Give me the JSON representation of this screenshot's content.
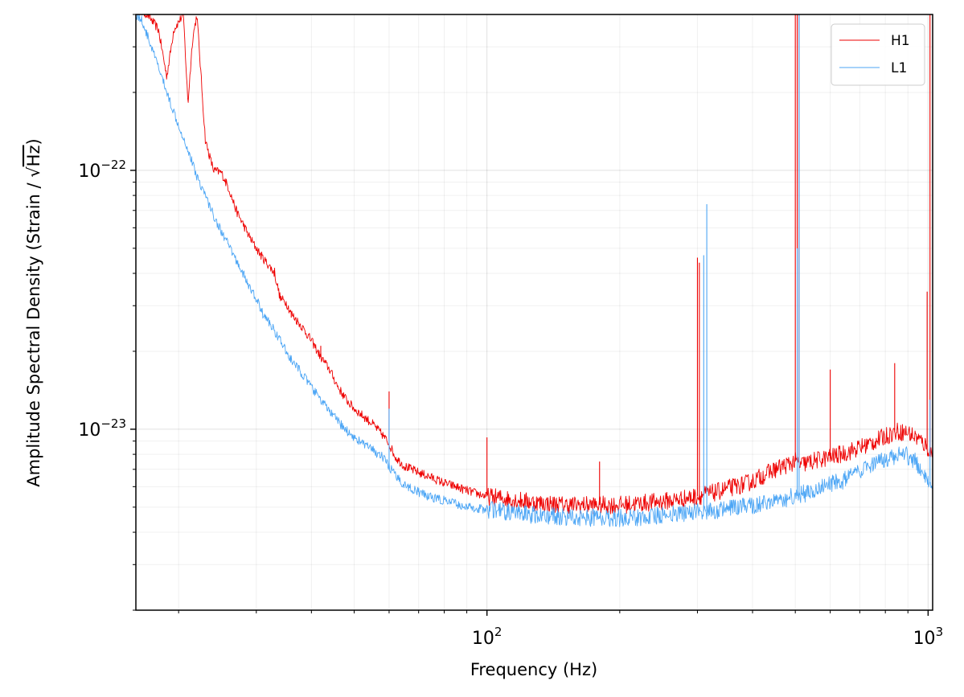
{
  "chart_data": {
    "type": "line",
    "title": "",
    "xlabel": "Frequency (Hz)",
    "ylabel_prefix": "Amplitude Spectral Density (Strain / ",
    "ylabel_sqrt": "√",
    "ylabel_radicand": "Hz",
    "ylabel_suffix": ")",
    "xscale": "log",
    "yscale": "log",
    "xlim": [
      16,
      1024
    ],
    "ylim": [
      2e-24,
      4e-22
    ],
    "grid": true,
    "legend_position": "top-right",
    "x_major_ticks": [
      {
        "value": 100,
        "base": "10",
        "exp": "2"
      },
      {
        "value": 1000,
        "base": "10",
        "exp": "3"
      }
    ],
    "y_major_ticks": [
      {
        "value": 1e-22,
        "base": "10",
        "exp": "−22"
      },
      {
        "value": 1e-23,
        "base": "10",
        "exp": "−23"
      }
    ],
    "series": [
      {
        "name": "H1",
        "color": "#ee0000",
        "x": [
          16,
          17,
          18,
          18.8,
          19.5,
          20.5,
          21,
          21.5,
          22,
          23,
          24,
          25,
          26,
          27,
          28,
          29,
          30,
          31,
          32,
          33,
          34,
          35,
          36,
          38,
          40,
          42,
          44,
          46,
          48,
          50,
          55,
          58,
          60,
          62,
          65,
          70,
          75,
          80,
          85,
          90,
          100,
          110,
          120,
          130,
          150,
          180,
          200,
          230,
          260,
          280,
          300,
          303,
          310,
          330,
          350,
          380,
          400,
          420,
          450,
          480,
          500,
          505,
          510,
          515,
          530,
          560,
          600,
          650,
          700,
          750,
          800,
          850,
          900,
          950,
          990,
          1000,
          1010,
          1024
        ],
        "y": [
          4.2e-22,
          4e-22,
          3.5e-22,
          2.3e-22,
          3.5e-22,
          4e-22,
          1.8e-22,
          3.2e-22,
          4e-22,
          1.3e-22,
          1e-22,
          9.8e-23,
          8.5e-23,
          7e-23,
          6.2e-23,
          5.5e-23,
          5e-23,
          4.6e-23,
          4.3e-23,
          4e-23,
          3.2e-23,
          3.1e-23,
          2.8e-23,
          2.5e-23,
          2.2e-23,
          1.9e-23,
          1.7e-23,
          1.45e-23,
          1.3e-23,
          1.2e-23,
          1.05e-23,
          9.5e-24,
          8.8e-24,
          7.8e-24,
          7.2e-24,
          6.8e-24,
          6.5e-24,
          6.2e-24,
          6e-24,
          5.8e-24,
          5.5e-24,
          5.4e-24,
          5.3e-24,
          5.2e-24,
          5.1e-24,
          5.1e-24,
          5.1e-24,
          5.2e-24,
          5.3e-24,
          5.4e-24,
          5.5e-24,
          5.5e-24,
          5.6e-24,
          5.7e-24,
          5.9e-24,
          6.1e-24,
          6.3e-24,
          6.6e-24,
          7e-24,
          7.3e-24,
          7.5e-24,
          7.5e-24,
          7.3e-24,
          7.3e-24,
          7.4e-24,
          7.6e-24,
          7.8e-24,
          8.1e-24,
          8.5e-24,
          8.9e-24,
          9.4e-24,
          9.8e-24,
          9.7e-24,
          9.2e-24,
          8.6e-24,
          8.4e-24,
          8.2e-24,
          8e-24
        ],
        "peaks": [
          {
            "x": 60,
            "y": 1.4e-23
          },
          {
            "x": 33,
            "y": 4.2e-23
          },
          {
            "x": 36,
            "y": 2.7e-23
          },
          {
            "x": 42,
            "y": 2.1e-23
          },
          {
            "x": 100,
            "y": 9.3e-24
          },
          {
            "x": 180,
            "y": 7.5e-24
          },
          {
            "x": 300,
            "y": 4.6e-23
          },
          {
            "x": 303,
            "y": 4.4e-23
          },
          {
            "x": 500,
            "y": 4e-22
          },
          {
            "x": 505,
            "y": 4e-22
          },
          {
            "x": 510,
            "y": 4e-22
          },
          {
            "x": 600,
            "y": 1.7e-23
          },
          {
            "x": 840,
            "y": 1.8e-23
          },
          {
            "x": 995,
            "y": 3.4e-23
          },
          {
            "x": 1010,
            "y": 4e-22
          }
        ]
      },
      {
        "name": "L1",
        "color": "#4da6f5",
        "x": [
          16,
          16.5,
          17,
          18,
          19,
          20,
          21,
          22,
          23,
          24,
          25,
          26,
          27,
          28,
          29,
          30,
          31,
          32,
          33,
          34,
          35,
          36,
          38,
          40,
          42,
          44,
          46,
          48,
          50,
          55,
          58,
          60,
          62,
          65,
          70,
          75,
          80,
          85,
          90,
          100,
          110,
          120,
          130,
          150,
          180,
          200,
          230,
          260,
          280,
          300,
          330,
          350,
          380,
          400,
          450,
          500,
          550,
          600,
          650,
          700,
          750,
          800,
          850,
          900,
          950,
          1000,
          1024
        ],
        "y": [
          4e-22,
          3.8e-22,
          3.3e-22,
          2.5e-22,
          1.9e-22,
          1.5e-22,
          1.2e-22,
          9.5e-23,
          8e-23,
          6.7e-23,
          5.8e-23,
          5.1e-23,
          4.5e-23,
          4e-23,
          3.5e-23,
          3.2e-23,
          2.8e-23,
          2.6e-23,
          2.4e-23,
          2.2e-23,
          2e-23,
          1.85e-23,
          1.65e-23,
          1.45e-23,
          1.3e-23,
          1.17e-23,
          1.07e-23,
          9.9e-24,
          9.3e-24,
          8.3e-24,
          7.8e-24,
          7.2e-24,
          6.6e-24,
          6.1e-24,
          5.7e-24,
          5.45e-24,
          5.3e-24,
          5.15e-24,
          5e-24,
          4.9e-24,
          4.8e-24,
          4.7e-24,
          4.65e-24,
          4.6e-24,
          4.55e-24,
          4.55e-24,
          4.6e-24,
          4.7e-24,
          4.75e-24,
          4.8e-24,
          4.85e-24,
          4.9e-24,
          5e-24,
          5.1e-24,
          5.3e-24,
          5.5e-24,
          5.8e-24,
          6.1e-24,
          6.4e-24,
          6.8e-24,
          7.2e-24,
          7.6e-24,
          7.9e-24,
          7.9e-24,
          7.3e-24,
          6.5e-24,
          6e-24
        ],
        "peaks": [
          {
            "x": 60,
            "y": 1.2e-23
          },
          {
            "x": 310,
            "y": 4.7e-23
          },
          {
            "x": 315,
            "y": 7.4e-23
          },
          {
            "x": 505,
            "y": 5e-23
          },
          {
            "x": 510,
            "y": 4e-22
          },
          {
            "x": 1010,
            "y": 1.3e-23
          }
        ]
      }
    ]
  }
}
